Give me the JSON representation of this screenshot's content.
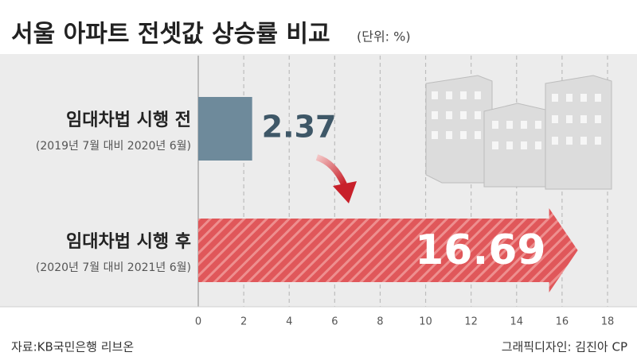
{
  "chart_data": {
    "type": "bar",
    "orientation": "horizontal",
    "title": "서울 아파트 전셋값 상승률 비교",
    "unit_note": "(단위: %)",
    "categories": [
      "임대차법 시행 전",
      "임대차법 시행 후"
    ],
    "category_notes": [
      "(2019년 7월 대비 2020년 6월)",
      "(2020년 7월 대비 2021년 6월)"
    ],
    "values": [
      2.37,
      16.69
    ],
    "colors": [
      "#6e8a9b",
      "#e0575a"
    ],
    "bar_styles": [
      "solid",
      "striped-arrow"
    ],
    "xlim": [
      0,
      18
    ],
    "xticks": [
      0,
      2,
      4,
      6,
      8,
      10,
      12,
      14,
      16,
      18
    ],
    "grid": true,
    "source": "자료:KB국민은행 리브온",
    "credit": "그래픽디자인: 김진아 CP"
  }
}
